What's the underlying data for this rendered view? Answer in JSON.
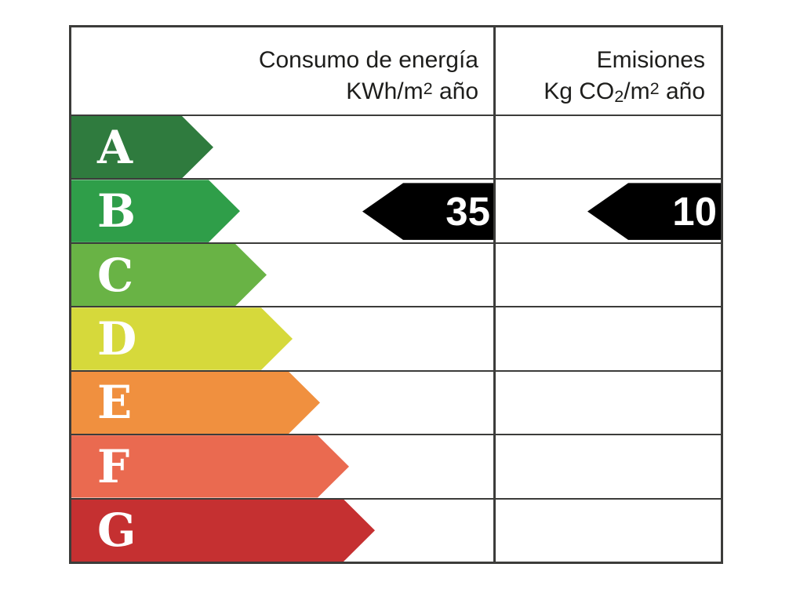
{
  "header": {
    "consumption_title": "Consumo de energía",
    "consumption_unit_base": "KWh/m",
    "consumption_unit_exp": "2",
    "consumption_unit_tail": " año",
    "emissions_title": "Emisiones",
    "emissions_unit_base": "Kg CO",
    "emissions_unit_sub": "2",
    "emissions_unit_mid": "/m",
    "emissions_unit_exp": "2",
    "emissions_unit_tail": " año"
  },
  "rating_scale": {
    "rows": [
      {
        "letter": "A",
        "color": "#2f7b3e"
      },
      {
        "letter": "B",
        "color": "#2f9e49"
      },
      {
        "letter": "C",
        "color": "#69b345"
      },
      {
        "letter": "D",
        "color": "#d6d93b"
      },
      {
        "letter": "E",
        "color": "#f0903f"
      },
      {
        "letter": "F",
        "color": "#ea6a50"
      },
      {
        "letter": "G",
        "color": "#c53031"
      }
    ]
  },
  "indicators": {
    "rating": "B",
    "consumption_value": "35",
    "emissions_value": "10",
    "arrow_color": "#000000",
    "text_color": "#ffffff"
  },
  "border_color": "#3c3c3a",
  "chart_data": {
    "type": "table",
    "columns": [
      "Consumo de energía KWh/m2 año",
      "Emisiones Kg CO2/m2 año"
    ],
    "categories": [
      "A",
      "B",
      "C",
      "D",
      "E",
      "F",
      "G"
    ],
    "highlighted_category": "B",
    "values": [
      {
        "label": "Consumo de energía",
        "value": 35,
        "unit": "KWh/m2 año",
        "category": "B"
      },
      {
        "label": "Emisiones",
        "value": 10,
        "unit": "Kg CO2/m2 año",
        "category": "B"
      }
    ]
  }
}
